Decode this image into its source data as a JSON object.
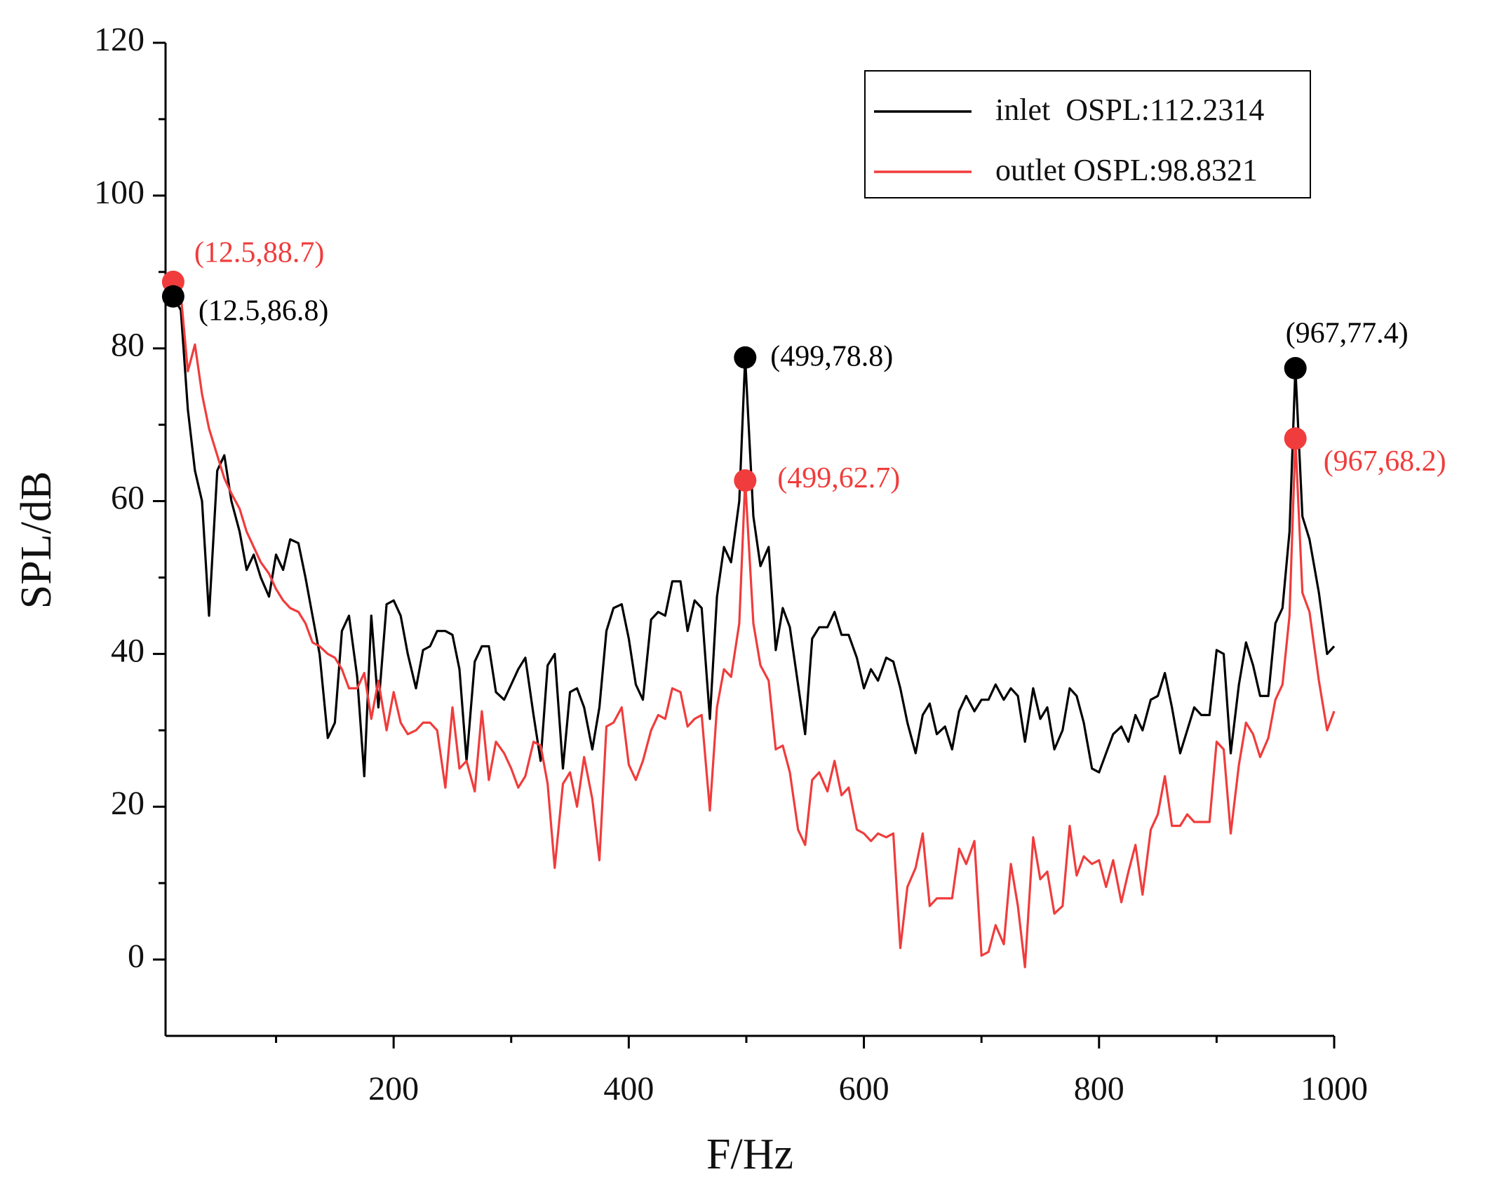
{
  "chart_data": {
    "type": "line",
    "xlabel": "F/Hz",
    "ylabel": "SPL/dB",
    "xlim": [
      6,
      1000
    ],
    "ylim": [
      -10,
      120
    ],
    "xticks": [
      200,
      400,
      600,
      800,
      1000
    ],
    "xminorticks": [
      100,
      300,
      500,
      700,
      900
    ],
    "yticks": [
      0,
      20,
      40,
      60,
      80,
      100,
      120
    ],
    "yminorticks": [
      10,
      30,
      50,
      70,
      90,
      110
    ],
    "legend": "upper right",
    "x": [
      12.5,
      19,
      25,
      31,
      37,
      43,
      50,
      56,
      62,
      69,
      75,
      81,
      87,
      94,
      100,
      106,
      112,
      119,
      125,
      131,
      137,
      144,
      150,
      156,
      162,
      169,
      175,
      181,
      187,
      194,
      200,
      206,
      212,
      219,
      225,
      231,
      237,
      244,
      250,
      256,
      262,
      269,
      275,
      281,
      287,
      294,
      300,
      306,
      312,
      319,
      325,
      331,
      337,
      344,
      350,
      356,
      362,
      369,
      375,
      381,
      387,
      394,
      400,
      406,
      412,
      419,
      425,
      431,
      437,
      444,
      450,
      456,
      462,
      469,
      475,
      481,
      487,
      494,
      499,
      506,
      512,
      519,
      525,
      531,
      537,
      544,
      550,
      556,
      562,
      569,
      575,
      581,
      587,
      594,
      600,
      606,
      612,
      619,
      625,
      631,
      637,
      644,
      650,
      656,
      662,
      669,
      675,
      681,
      687,
      694,
      700,
      706,
      712,
      719,
      725,
      731,
      737,
      744,
      750,
      756,
      762,
      769,
      775,
      781,
      787,
      794,
      800,
      806,
      812,
      819,
      825,
      831,
      837,
      844,
      850,
      856,
      862,
      869,
      875,
      881,
      887,
      894,
      900,
      906,
      912,
      919,
      925,
      931,
      937,
      944,
      950,
      956,
      962,
      967,
      973,
      979,
      987,
      994,
      1000
    ],
    "series": [
      {
        "name": "inlet  OSPL:112.2314",
        "color": "#000000",
        "values": [
          86.8,
          85,
          72,
          64,
          60,
          45,
          64,
          66,
          60,
          56,
          51,
          53,
          50,
          47.5,
          53,
          51,
          55,
          54.5,
          50,
          45,
          40,
          29,
          31,
          43,
          45,
          37,
          24,
          45,
          33,
          46.5,
          47,
          45,
          40,
          35.5,
          40.5,
          41,
          43,
          43,
          42.5,
          38,
          26,
          39,
          41,
          41,
          35,
          34,
          36,
          38,
          39.5,
          32,
          26,
          38.5,
          40,
          25,
          35,
          35.5,
          33,
          27.5,
          33,
          43,
          46,
          46.5,
          42,
          36,
          34,
          44.5,
          45.5,
          45,
          49.5,
          49.5,
          43,
          47,
          46,
          31.5,
          47.5,
          54,
          52,
          60,
          78.8,
          58,
          51.5,
          54,
          40.5,
          46,
          43.5,
          36,
          29.5,
          42,
          43.5,
          43.5,
          45.5,
          42.5,
          42.5,
          39.5,
          35.5,
          38,
          36.5,
          39.5,
          39,
          35.5,
          31,
          27,
          32,
          33.5,
          29.5,
          30.5,
          27.5,
          32.5,
          34.5,
          32.5,
          34,
          34,
          36,
          34,
          35.5,
          34.5,
          28.5,
          35.5,
          31.5,
          33,
          27.5,
          30,
          35.5,
          34.5,
          31,
          25,
          24.5,
          27,
          29.5,
          30.5,
          28.5,
          32,
          30,
          34,
          34.5,
          37.5,
          33,
          27,
          30,
          33,
          32,
          32,
          40.5,
          40,
          27,
          36,
          41.5,
          38.5,
          34.5,
          34.5,
          44,
          46,
          56,
          77.4,
          58,
          55,
          48,
          40,
          41
        ]
      },
      {
        "name": "outlet OSPL:98.8321",
        "color": "#f03c3c",
        "values": [
          88.7,
          87,
          77,
          80.5,
          74,
          69.5,
          66,
          63,
          61,
          59,
          56,
          54,
          52,
          50.5,
          48.5,
          47,
          46,
          45.5,
          44,
          41.5,
          41,
          40,
          39.5,
          38,
          35.5,
          35.5,
          37.5,
          31.5,
          36.5,
          30,
          35,
          31,
          29.5,
          30,
          31,
          31,
          30,
          22.5,
          33,
          25,
          26,
          22,
          32.5,
          23.5,
          28.5,
          27,
          25,
          22.5,
          24,
          28.5,
          28,
          23,
          12,
          23,
          24.5,
          20,
          26.5,
          21,
          13,
          30.5,
          31,
          33,
          25.5,
          23.5,
          26,
          30,
          32,
          31.5,
          35.5,
          35,
          30.5,
          31.5,
          32,
          19.5,
          33,
          38,
          37,
          44,
          62.7,
          44,
          38.5,
          36.5,
          27.5,
          28,
          24.5,
          17,
          15,
          23.5,
          24.5,
          22,
          26,
          21.5,
          22.5,
          17,
          16.5,
          15.5,
          16.5,
          16,
          16.5,
          1.5,
          9.5,
          12,
          16.5,
          7,
          8,
          8,
          8,
          14.5,
          12.5,
          15.5,
          0.5,
          1,
          4.5,
          2,
          12.5,
          7,
          -1,
          16,
          10.5,
          11.5,
          6,
          7,
          17.5,
          11,
          13.5,
          12.5,
          13,
          9.5,
          13,
          7.5,
          11.5,
          15,
          8.5,
          17,
          19,
          24,
          17.5,
          17.5,
          19,
          18,
          18,
          18,
          28.5,
          27.5,
          16.5,
          25.5,
          31,
          29.5,
          26.5,
          29,
          34,
          36,
          45,
          68.2,
          48,
          45.5,
          36.5,
          30,
          32.5
        ]
      }
    ],
    "annotations": [
      {
        "text": "(12.5,88.7)",
        "x": 12.5,
        "y": 88.7,
        "color": "#f03c3c"
      },
      {
        "text": "(12.5,86.8)",
        "x": 12.5,
        "y": 86.8,
        "color": "#000000"
      },
      {
        "text": "(499,78.8)",
        "x": 499,
        "y": 78.8,
        "color": "#000000"
      },
      {
        "text": "(499,62.7)",
        "x": 499,
        "y": 62.7,
        "color": "#f03c3c"
      },
      {
        "text": "(967,77.4)",
        "x": 967,
        "y": 77.4,
        "color": "#000000"
      },
      {
        "text": "(967,68.2)",
        "x": 967,
        "y": 68.2,
        "color": "#f03c3c"
      }
    ]
  }
}
